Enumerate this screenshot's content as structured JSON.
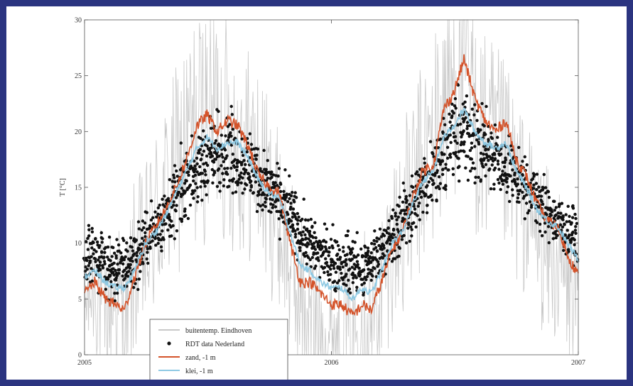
{
  "chart_data": {
    "type": "line",
    "title": "",
    "xlabel": "",
    "ylabel": "T [°C]",
    "ylim": [
      0,
      30
    ],
    "yticks": [
      0,
      5,
      10,
      15,
      20,
      25,
      30
    ],
    "x_range": [
      "2005-01-01",
      "2007-01-01"
    ],
    "x_tick_labels": [
      "2005",
      "2006",
      "2007"
    ],
    "grid": false,
    "legend_position": "lower-left",
    "series": [
      {
        "name": "buitentemp. Eindhoven",
        "style": "line",
        "color": "#c8c8c8",
        "x": [
          "2005-01-01",
          "2005-01-16",
          "2005-02-01",
          "2005-02-16",
          "2005-03-01",
          "2005-03-16",
          "2005-04-01",
          "2005-04-16",
          "2005-05-01",
          "2005-05-16",
          "2005-06-01",
          "2005-06-16",
          "2005-07-01",
          "2005-07-16",
          "2005-08-01",
          "2005-08-16",
          "2005-09-01",
          "2005-09-16",
          "2005-10-01",
          "2005-10-16",
          "2005-11-01",
          "2005-11-16",
          "2005-12-01",
          "2005-12-16",
          "2006-01-01",
          "2006-01-16",
          "2006-02-01",
          "2006-02-16",
          "2006-03-01",
          "2006-03-16",
          "2006-04-01",
          "2006-04-16",
          "2006-05-01",
          "2006-05-16",
          "2006-06-01",
          "2006-06-16",
          "2006-07-01",
          "2006-07-16",
          "2006-08-01",
          "2006-08-16",
          "2006-09-01",
          "2006-09-16",
          "2006-10-01",
          "2006-10-16",
          "2006-11-01",
          "2006-11-16",
          "2006-12-01",
          "2006-12-16",
          "2007-01-01"
        ],
        "y": [
          4,
          7,
          3,
          6,
          2,
          8,
          9,
          12,
          14,
          16,
          19,
          20,
          21,
          22,
          20,
          19,
          18,
          17,
          14,
          12,
          8,
          5,
          3,
          2,
          1,
          3,
          2,
          4,
          3,
          6,
          10,
          12,
          14,
          17,
          19,
          22,
          25,
          27,
          21,
          19,
          18,
          17,
          15,
          13,
          11,
          9,
          8,
          6,
          5
        ],
        "amplitude": [
          6,
          7,
          7,
          8,
          8,
          8,
          8,
          9,
          9,
          10,
          10,
          11,
          11,
          11,
          11,
          10,
          10,
          9,
          9,
          8,
          8,
          8,
          8,
          7,
          7,
          7,
          7,
          8,
          8,
          8,
          8,
          9,
          9,
          10,
          10,
          11,
          11,
          11,
          11,
          10,
          10,
          9,
          9,
          8,
          8,
          8,
          7,
          7,
          6
        ]
      },
      {
        "name": "RDT data Nederland",
        "style": "scatter",
        "color": "#111111",
        "x": [
          "2005-01-01",
          "2005-01-16",
          "2005-02-01",
          "2005-02-16",
          "2005-03-01",
          "2005-03-16",
          "2005-04-01",
          "2005-04-16",
          "2005-05-01",
          "2005-05-16",
          "2005-06-01",
          "2005-06-16",
          "2005-07-01",
          "2005-07-16",
          "2005-08-01",
          "2005-08-16",
          "2005-09-01",
          "2005-09-16",
          "2005-10-01",
          "2005-10-16",
          "2005-11-01",
          "2005-11-16",
          "2005-12-01",
          "2005-12-16",
          "2006-01-01",
          "2006-01-16",
          "2006-02-01",
          "2006-02-16",
          "2006-03-01",
          "2006-03-16",
          "2006-04-01",
          "2006-04-16",
          "2006-05-01",
          "2006-05-16",
          "2006-06-01",
          "2006-06-16",
          "2006-07-01",
          "2006-07-16",
          "2006-08-01",
          "2006-08-16",
          "2006-09-01",
          "2006-09-16",
          "2006-10-01",
          "2006-10-16",
          "2006-11-01",
          "2006-11-16",
          "2006-12-01",
          "2006-12-16"
        ],
        "y": [
          8.5,
          9,
          8,
          7.5,
          8,
          8.5,
          10,
          11.5,
          12.5,
          14,
          15.5,
          16.5,
          17.5,
          18,
          18.5,
          17.5,
          17,
          16,
          15,
          14,
          12.5,
          11,
          10,
          9,
          8.5,
          8,
          8,
          7.5,
          8.5,
          9.5,
          10.5,
          12,
          13.5,
          15,
          16.5,
          18,
          19.5,
          20,
          19,
          18,
          17.5,
          17,
          16,
          15,
          14,
          13,
          12,
          11
        ],
        "spread": [
          2.2,
          2.2,
          2,
          2,
          2,
          2,
          2,
          2.2,
          2.4,
          2.6,
          2.6,
          2.8,
          2.8,
          2.8,
          2.8,
          2.6,
          2.6,
          2.4,
          2.2,
          2.2,
          2.2,
          2,
          2,
          2,
          2.2,
          2.2,
          2,
          2,
          2,
          2,
          2.2,
          2.2,
          2.4,
          2.6,
          2.8,
          2.8,
          3,
          3,
          2.8,
          2.6,
          2.6,
          2.4,
          2.2,
          2.2,
          2,
          2,
          2,
          2
        ]
      },
      {
        "name": "zand, -1 m",
        "style": "line",
        "color": "#d4532a",
        "x": [
          "2005-01-01",
          "2005-01-16",
          "2005-02-01",
          "2005-02-16",
          "2005-03-01",
          "2005-03-16",
          "2005-04-01",
          "2005-04-16",
          "2005-05-01",
          "2005-05-16",
          "2005-06-01",
          "2005-06-16",
          "2005-07-01",
          "2005-07-16",
          "2005-08-01",
          "2005-08-16",
          "2005-09-01",
          "2005-09-16",
          "2005-10-01",
          "2005-10-16",
          "2005-11-01",
          "2005-11-16",
          "2005-12-01",
          "2005-12-16",
          "2006-01-01",
          "2006-01-16",
          "2006-02-01",
          "2006-02-16",
          "2006-03-01",
          "2006-03-16",
          "2006-04-01",
          "2006-04-16",
          "2006-05-01",
          "2006-05-16",
          "2006-06-01",
          "2006-06-16",
          "2006-07-01",
          "2006-07-16",
          "2006-08-01",
          "2006-08-16",
          "2006-09-01",
          "2006-09-16",
          "2006-10-01",
          "2006-10-16",
          "2006-11-01",
          "2006-11-16",
          "2006-12-01",
          "2006-12-16",
          "2007-01-01"
        ],
        "y": [
          5.5,
          6.5,
          5,
          4.5,
          4,
          7,
          10,
          11.5,
          13,
          15,
          17.5,
          20.5,
          21.5,
          20,
          21,
          20.5,
          18.5,
          16,
          15,
          14.5,
          10,
          6.5,
          6.5,
          5.5,
          4.5,
          4.5,
          3.5,
          4.5,
          4,
          6.5,
          9.5,
          11,
          14,
          16.5,
          17,
          22,
          23.5,
          26.5,
          23,
          21,
          20,
          21,
          17.5,
          16,
          13.5,
          12,
          11.5,
          9,
          7
        ]
      },
      {
        "name": "klei, -1 m",
        "style": "line",
        "color": "#8ec9e3",
        "x": [
          "2005-01-01",
          "2005-01-16",
          "2005-02-01",
          "2005-02-16",
          "2005-03-01",
          "2005-03-16",
          "2005-04-01",
          "2005-04-16",
          "2005-05-01",
          "2005-05-16",
          "2005-06-01",
          "2005-06-16",
          "2005-07-01",
          "2005-07-16",
          "2005-08-01",
          "2005-08-16",
          "2005-09-01",
          "2005-09-16",
          "2005-10-01",
          "2005-10-16",
          "2005-11-01",
          "2005-11-16",
          "2005-12-01",
          "2005-12-16",
          "2006-01-01",
          "2006-01-16",
          "2006-02-01",
          "2006-02-16",
          "2006-03-01",
          "2006-03-16",
          "2006-04-01",
          "2006-04-16",
          "2006-05-01",
          "2006-05-16",
          "2006-06-01",
          "2006-06-16",
          "2006-07-01",
          "2006-07-16",
          "2006-08-01",
          "2006-08-16",
          "2006-09-01",
          "2006-09-16",
          "2006-10-01",
          "2006-10-16",
          "2006-11-01",
          "2006-11-16",
          "2006-12-01",
          "2006-12-16",
          "2007-01-01"
        ],
        "y": [
          7,
          7.5,
          6.5,
          6,
          6,
          7.5,
          10,
          11,
          12.5,
          14.5,
          16.5,
          18.5,
          19.5,
          18.5,
          19,
          19,
          17.5,
          15.5,
          14.5,
          14,
          11,
          8,
          7.5,
          6.5,
          6,
          6,
          5,
          6,
          5.5,
          7.5,
          10,
          11,
          13.5,
          15.5,
          16.5,
          19.5,
          20.5,
          22,
          20,
          19,
          18.5,
          19,
          16.5,
          15,
          13,
          12,
          11.5,
          10,
          8.5
        ]
      }
    ]
  }
}
